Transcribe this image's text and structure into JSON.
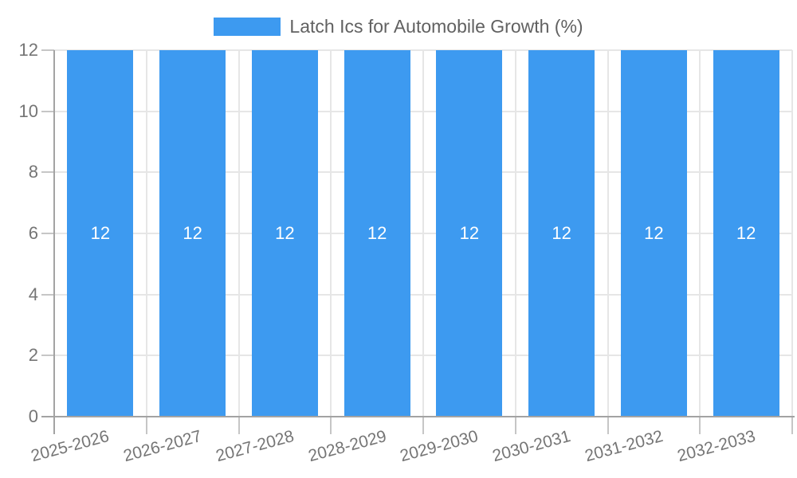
{
  "chart_data": {
    "type": "bar",
    "title": "Latch Ics for Automobile Growth (%)",
    "categories": [
      "2025-2026",
      "2026-2027",
      "2027-2028",
      "2028-2029",
      "2029-2030",
      "2030-2031",
      "2031-2032",
      "2032-2033"
    ],
    "values": [
      12,
      12,
      12,
      12,
      12,
      12,
      12,
      12
    ],
    "bar_labels": [
      "12",
      "12",
      "12",
      "12",
      "12",
      "12",
      "12",
      "12"
    ],
    "xlabel": "",
    "ylabel": "",
    "ylim": [
      0,
      12
    ],
    "yticks": [
      0,
      2,
      4,
      6,
      8,
      10,
      12
    ],
    "ytick_labels": [
      "0",
      "2",
      "4",
      "6",
      "8",
      "10",
      "12"
    ],
    "grid": "on",
    "legend_position": "top-center",
    "colors": {
      "bar": "#3D9AF0",
      "bar_label": "#FFFFFF",
      "grid": "#E6E6E6",
      "axis": "#A3A3A3",
      "tick": "#C6C6C6",
      "tick_label": "#757575",
      "legend_text": "#616161",
      "background": "#FFFFFF"
    }
  }
}
